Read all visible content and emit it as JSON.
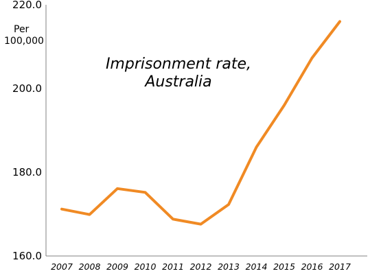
{
  "chart_data": {
    "type": "line",
    "title_lines": [
      "Imprisonment rate,",
      "Australia"
    ],
    "ylabel_lines": [
      "Per",
      "100,000"
    ],
    "xlabel": "",
    "ylim": [
      160.0,
      220.0
    ],
    "y_ticks": [
      "160.0",
      "180.0",
      "200.0",
      "220.0"
    ],
    "y_tick_values": [
      160,
      180,
      200,
      220
    ],
    "grid": false,
    "legend": "none",
    "series": [
      {
        "color": "#F08A24",
        "x": [
          "2007",
          "2008",
          "2009",
          "2010",
          "2011",
          "2012",
          "2013",
          "2014",
          "2015",
          "2016",
          "2017"
        ],
        "values": [
          171.2,
          169.9,
          176.1,
          175.2,
          168.8,
          167.6,
          172.3,
          186.0,
          196.0,
          207.3,
          216.0
        ]
      }
    ]
  }
}
